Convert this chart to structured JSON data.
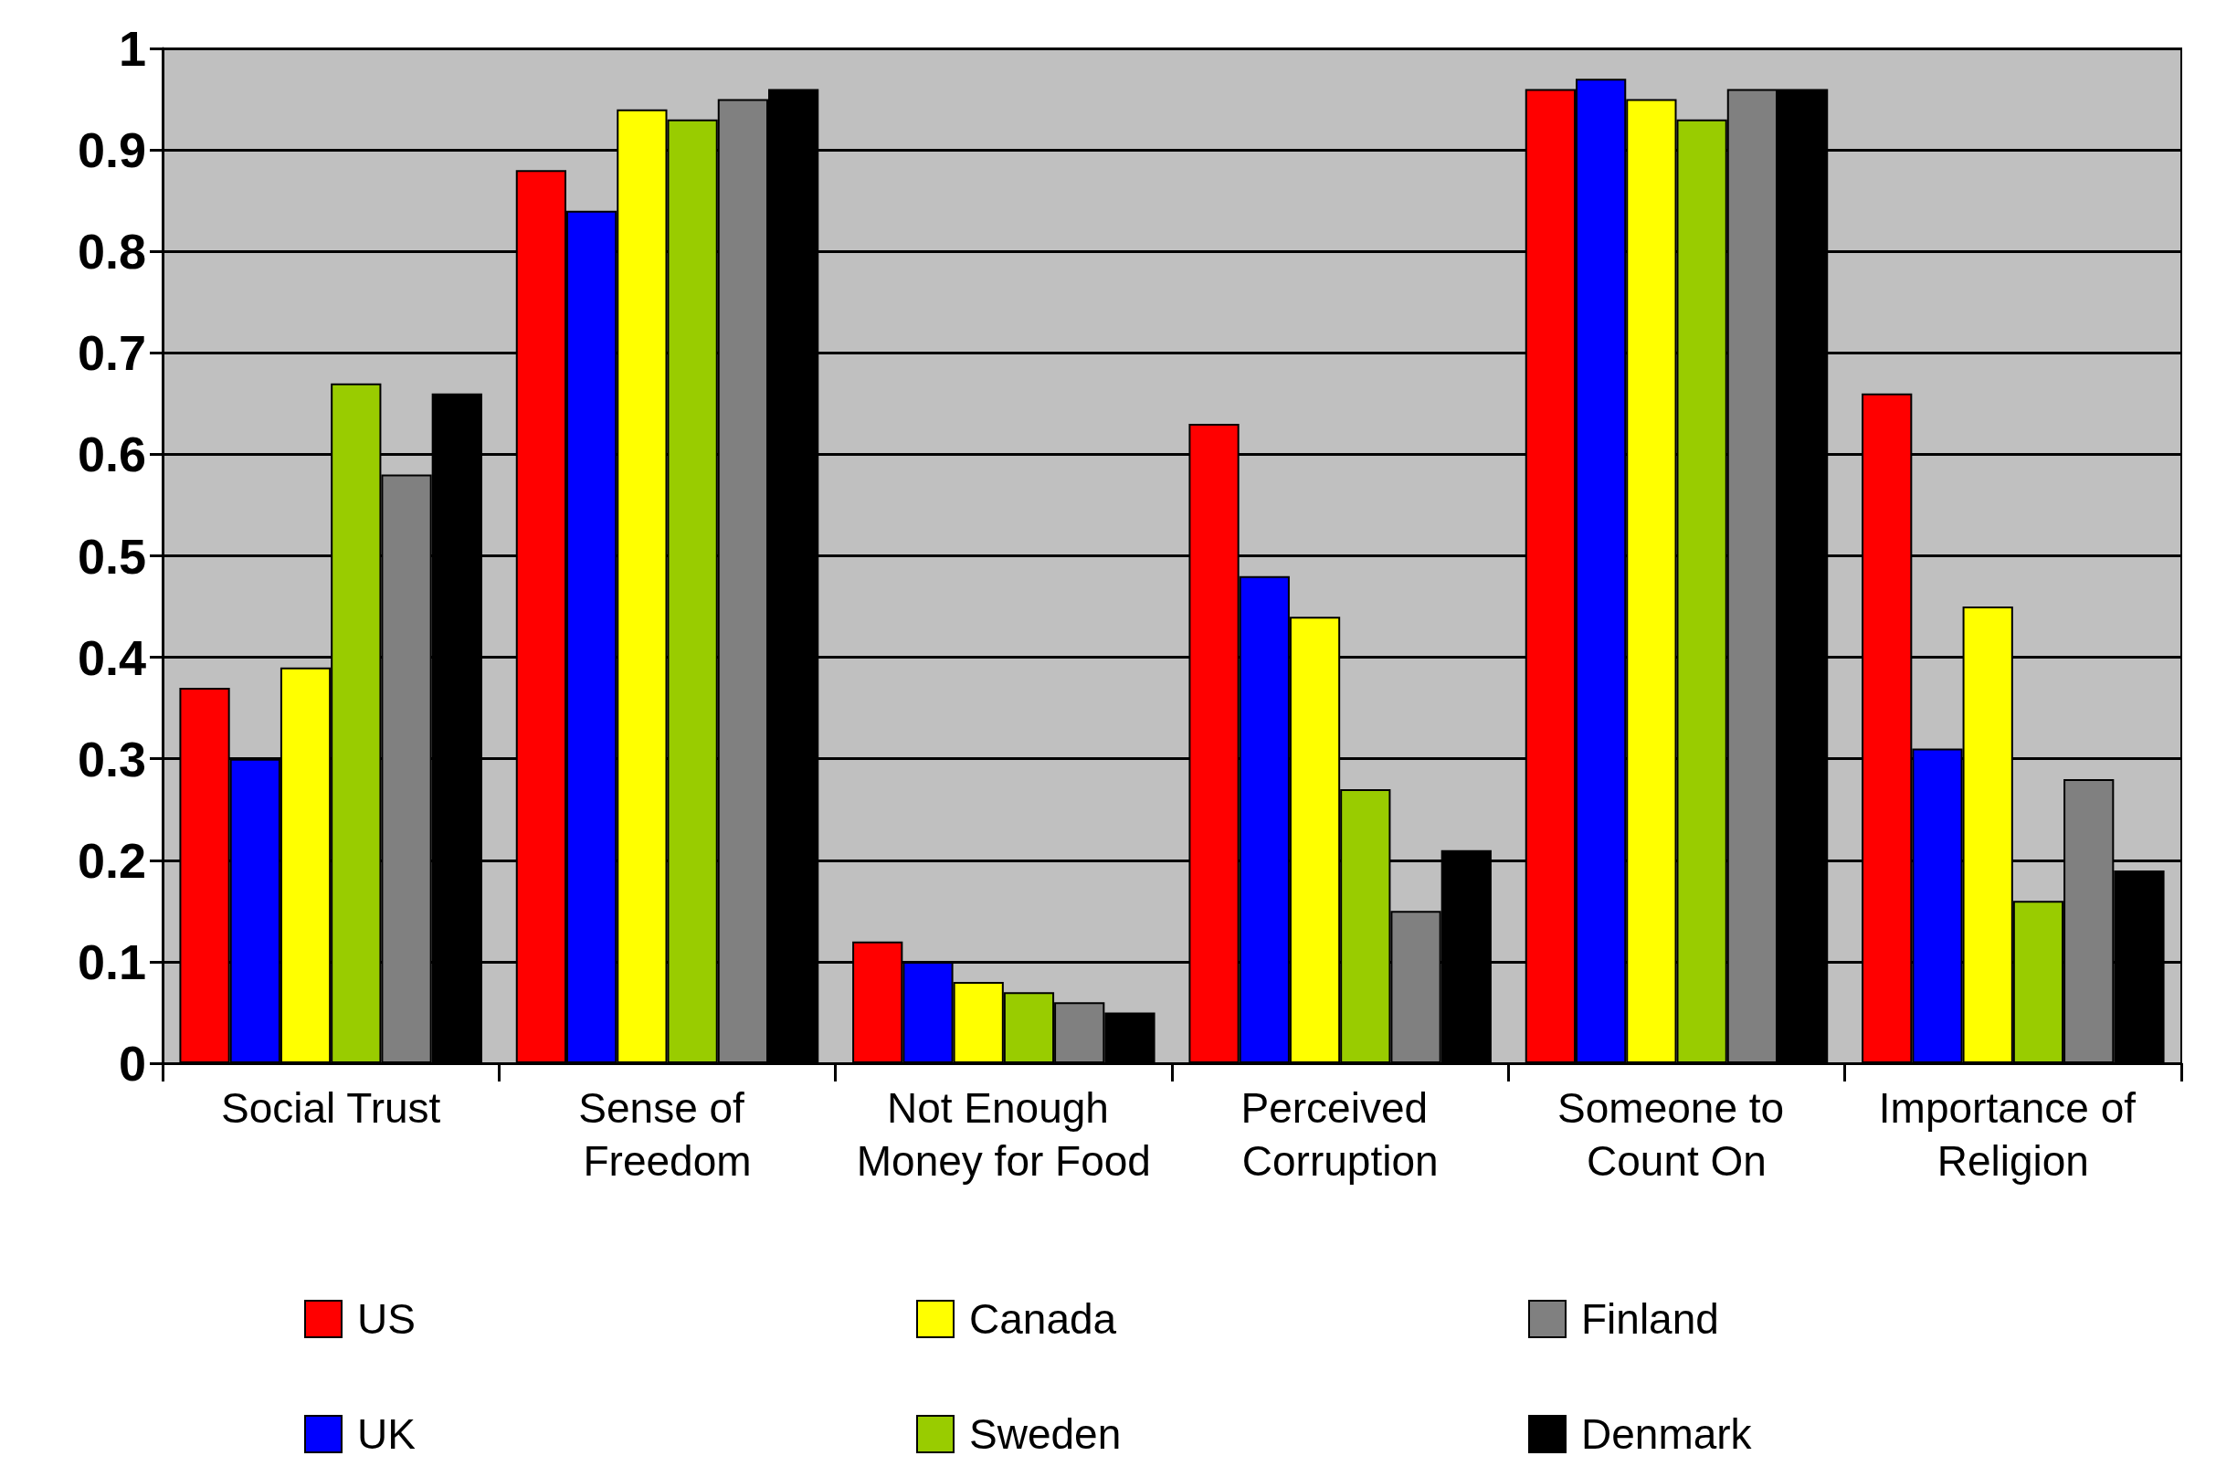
{
  "chart_data": {
    "type": "bar",
    "categories": [
      "Social Trust",
      "Sense of Freedom",
      "Not Enough Money for Food",
      "Perceived Corruption",
      "Someone to Count On",
      "Importance of Religion"
    ],
    "series": [
      {
        "name": "US",
        "color": "#ff0000",
        "values": [
          0.37,
          0.88,
          0.12,
          0.63,
          0.96,
          0.66
        ]
      },
      {
        "name": "UK",
        "color": "#0000ff",
        "values": [
          0.3,
          0.84,
          0.1,
          0.48,
          0.97,
          0.31
        ]
      },
      {
        "name": "Canada",
        "color": "#ffff00",
        "values": [
          0.39,
          0.94,
          0.08,
          0.44,
          0.95,
          0.45
        ]
      },
      {
        "name": "Sweden",
        "color": "#99cc00",
        "values": [
          0.67,
          0.93,
          0.07,
          0.27,
          0.93,
          0.16
        ]
      },
      {
        "name": "Finland",
        "color": "#808080",
        "values": [
          0.58,
          0.95,
          0.06,
          0.15,
          0.96,
          0.28
        ]
      },
      {
        "name": "Denmark",
        "color": "#000000",
        "values": [
          0.66,
          0.96,
          0.05,
          0.21,
          0.96,
          0.19
        ]
      }
    ],
    "ylim": [
      0,
      1
    ],
    "yticks": [
      0,
      0.1,
      0.2,
      0.3,
      0.4,
      0.5,
      0.6,
      0.7,
      0.8,
      0.9,
      1
    ],
    "grid": "y",
    "legend": "bottom"
  }
}
